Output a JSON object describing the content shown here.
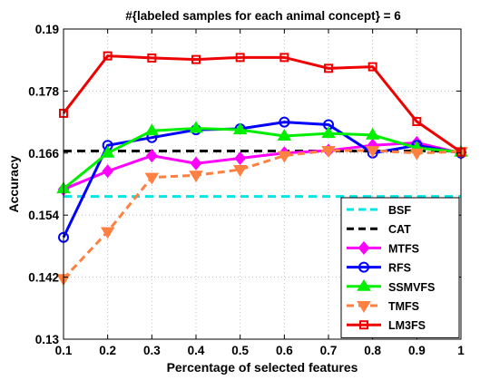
{
  "chart_data": {
    "type": "line",
    "title": "#{labeled samples for each animal concept} = 6",
    "xlabel": "Percentage of selected features",
    "ylabel": "Accuracy",
    "xlim": [
      0.1,
      1.0
    ],
    "ylim": [
      0.13,
      0.19
    ],
    "x": [
      0.1,
      0.2,
      0.3,
      0.4,
      0.5,
      0.6,
      0.7,
      0.8,
      0.9,
      1.0
    ],
    "x_tick_labels": [
      "0.1",
      "0.2",
      "0.3",
      "0.4",
      "0.5",
      "0.6",
      "0.7",
      "0.8",
      "0.9",
      "1"
    ],
    "y_ticks": [
      0.13,
      0.142,
      0.154,
      0.166,
      0.178,
      0.19
    ],
    "y_tick_labels": [
      "0.13",
      "0.142",
      "0.154",
      "0.166",
      "0.178",
      "0.19"
    ],
    "grid": true,
    "legend_position": "bottom-right",
    "series": [
      {
        "name": "BSF",
        "color": "#00e6e6",
        "style": "dashed",
        "marker": "none",
        "values": [
          0.1576,
          0.1576,
          0.1576,
          0.1576,
          0.1576,
          0.1576,
          0.1576,
          0.1576,
          0.1576,
          0.1576
        ]
      },
      {
        "name": "CAT",
        "color": "#000000",
        "style": "dashed",
        "marker": "none",
        "values": [
          0.1664,
          0.1664,
          0.1664,
          0.1664,
          0.1664,
          0.1664,
          0.1664,
          0.1664,
          0.1664,
          0.1664
        ]
      },
      {
        "name": "MTFS",
        "color": "#ff00ff",
        "style": "solid",
        "marker": "diamond",
        "values": [
          0.159,
          0.1625,
          0.1655,
          0.164,
          0.165,
          0.166,
          0.1665,
          0.1675,
          0.168,
          0.166
        ]
      },
      {
        "name": "RFS",
        "color": "#0000ff",
        "style": "solid",
        "marker": "circle",
        "values": [
          0.1497,
          0.1675,
          0.169,
          0.1705,
          0.1707,
          0.172,
          0.1715,
          0.166,
          0.1675,
          0.166
        ]
      },
      {
        "name": "SSMVFS",
        "color": "#00ee00",
        "style": "solid",
        "marker": "triangle-up",
        "values": [
          0.1591,
          0.166,
          0.1703,
          0.1708,
          0.1705,
          0.1693,
          0.1698,
          0.1695,
          0.167,
          0.1662
        ]
      },
      {
        "name": "TMFS",
        "color": "#ff8040",
        "style": "dashed",
        "marker": "triangle-down",
        "values": [
          0.1417,
          0.1508,
          0.1613,
          0.1617,
          0.1628,
          0.1655,
          0.1665,
          0.1665,
          0.166,
          0.1663
        ]
      },
      {
        "name": "LM3FS",
        "color": "#ee0000",
        "style": "solid",
        "marker": "square",
        "values": [
          0.1737,
          0.1848,
          0.1844,
          0.1841,
          0.1845,
          0.1845,
          0.1824,
          0.1827,
          0.1721,
          0.1662
        ]
      }
    ]
  }
}
